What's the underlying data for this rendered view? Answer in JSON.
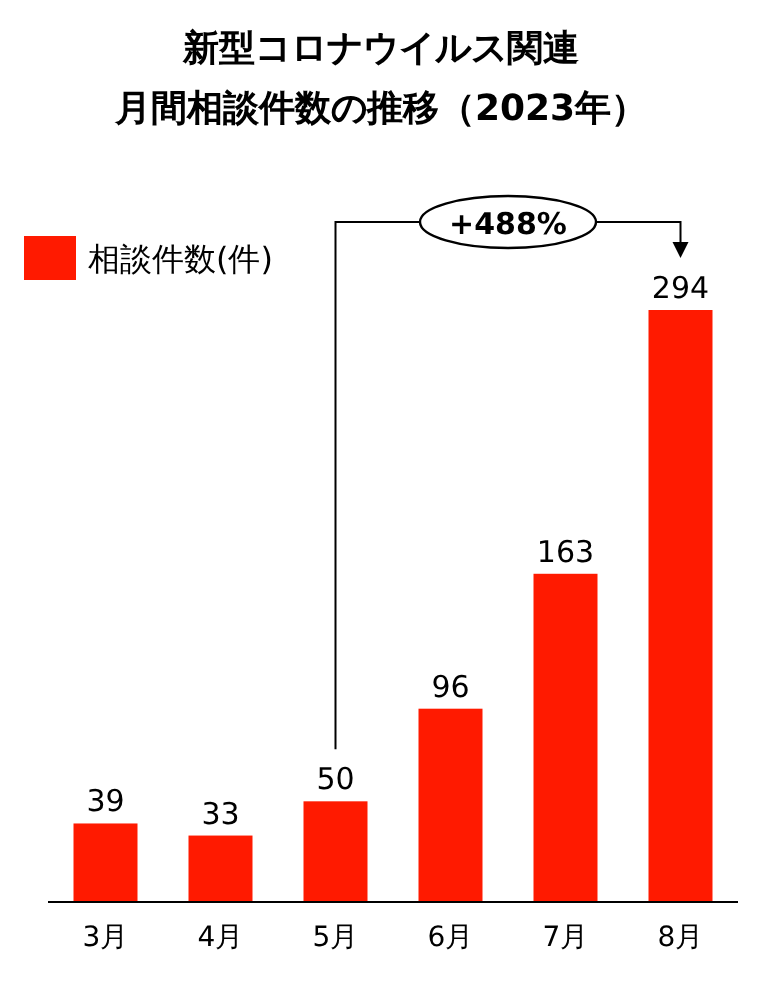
{
  "chart_data": {
    "type": "bar",
    "title": "新型コロナウイルス関連",
    "subtitle": "月間相談件数の推移（2023年）",
    "categories": [
      "3月",
      "4月",
      "5月",
      "6月",
      "7月",
      "8月"
    ],
    "series": [
      {
        "name": "相談件数(件)",
        "color": "#ff1a00",
        "values": [
          39,
          33,
          50,
          96,
          163,
          294
        ]
      }
    ],
    "data_labels": true,
    "legend": "top left",
    "annotations": [
      "+488%"
    ]
  }
}
